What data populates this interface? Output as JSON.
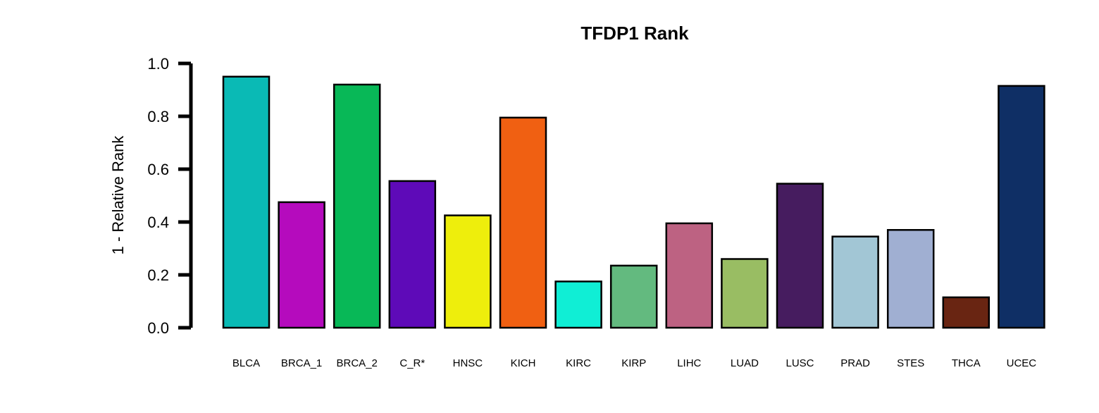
{
  "chart_data": {
    "type": "bar",
    "title": "TFDP1 Rank",
    "xlabel": "",
    "ylabel": "1 - Relative Rank",
    "ylim": [
      0,
      1
    ],
    "yticks": [
      "0.0",
      "0.2",
      "0.4",
      "0.6",
      "0.8",
      "1.0"
    ],
    "grid": false,
    "categories": [
      "BLCA",
      "BRCA_1",
      "BRCA_2",
      "C_R*",
      "HNSC",
      "KICH",
      "KIRC",
      "KIRP",
      "LIHC",
      "LUAD",
      "LUSC",
      "PRAD",
      "STES",
      "THCA",
      "UCEC"
    ],
    "values": [
      0.95,
      0.475,
      0.92,
      0.555,
      0.425,
      0.795,
      0.175,
      0.235,
      0.395,
      0.26,
      0.545,
      0.345,
      0.37,
      0.115,
      0.915
    ],
    "colors": [
      "#0ABAB5",
      "#B50BBD",
      "#08B857",
      "#5E0AB8",
      "#EEEE0C",
      "#F06012",
      "#10EED5",
      "#63BA7F",
      "#BD6282",
      "#99BD63",
      "#461C5F",
      "#A2C6D5",
      "#A0AFD2",
      "#692512",
      "#0F2F65"
    ]
  }
}
